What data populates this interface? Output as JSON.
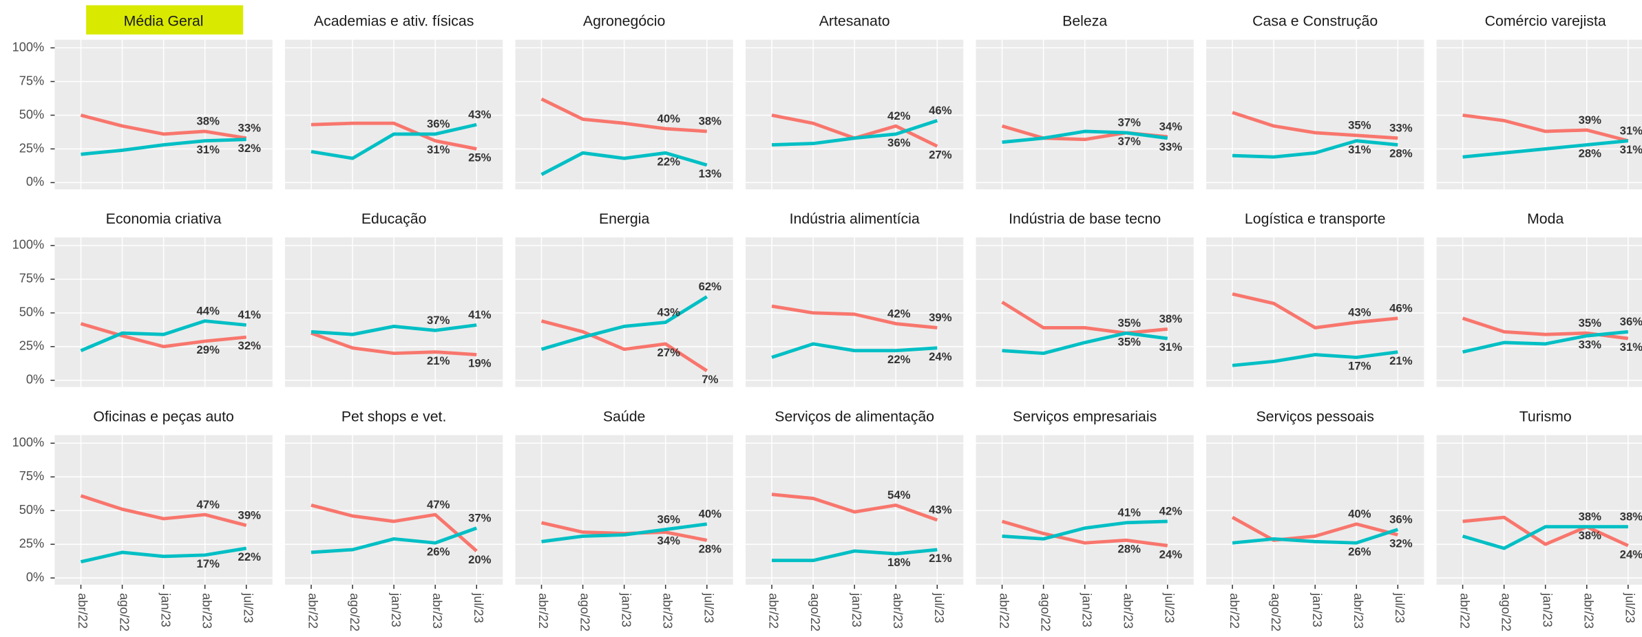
{
  "chart_data": {
    "type": "line",
    "categories": [
      "abr/22",
      "ago/22",
      "jan/23",
      "abr/23",
      "jul/23"
    ],
    "ylim": [
      -5,
      106
    ],
    "yticks": [
      {
        "value": 0,
        "label": "0%"
      },
      {
        "value": 25,
        "label": "25%"
      },
      {
        "value": 50,
        "label": "50%"
      },
      {
        "value": 75,
        "label": "75%"
      },
      {
        "value": 100,
        "label": "100%"
      }
    ],
    "grid": true,
    "panels": [
      {
        "title": "Média Geral",
        "series": [
          {
            "color": "#f8766d",
            "values": [
              50,
              42,
              36,
              38,
              33
            ],
            "value_labels": [
              null,
              null,
              null,
              "38%",
              "33%"
            ]
          },
          {
            "color": "#00bfc4",
            "values": [
              21,
              24,
              28,
              31,
              32
            ],
            "value_labels": [
              null,
              null,
              null,
              "31%",
              "32%"
            ]
          }
        ]
      },
      {
        "title": "Academias e ativ. físicas",
        "series": [
          {
            "color": "#f8766d",
            "values": [
              43,
              44,
              44,
              31,
              25
            ],
            "value_labels": [
              null,
              null,
              null,
              "31%",
              "25%"
            ]
          },
          {
            "color": "#00bfc4",
            "values": [
              23,
              18,
              36,
              36,
              43
            ],
            "value_labels": [
              null,
              null,
              null,
              "36%",
              "43%"
            ]
          }
        ]
      },
      {
        "title": "Agronegócio",
        "series": [
          {
            "color": "#f8766d",
            "values": [
              62,
              47,
              44,
              40,
              38
            ],
            "value_labels": [
              null,
              null,
              null,
              "40%",
              "38%"
            ]
          },
          {
            "color": "#00bfc4",
            "values": [
              6,
              22,
              18,
              22,
              13
            ],
            "value_labels": [
              null,
              null,
              null,
              "22%",
              "13%"
            ]
          }
        ]
      },
      {
        "title": "Artesanato",
        "series": [
          {
            "color": "#f8766d",
            "values": [
              50,
              44,
              33,
              42,
              27
            ],
            "value_labels": [
              null,
              null,
              null,
              "42%",
              "27%"
            ]
          },
          {
            "color": "#00bfc4",
            "values": [
              28,
              29,
              33,
              36,
              46
            ],
            "value_labels": [
              null,
              null,
              null,
              "36%",
              "46%"
            ]
          }
        ]
      },
      {
        "title": "Beleza",
        "series": [
          {
            "color": "#f8766d",
            "values": [
              42,
              33,
              32,
              37,
              34
            ],
            "value_labels": [
              null,
              null,
              null,
              "37%",
              "34%"
            ]
          },
          {
            "color": "#00bfc4",
            "values": [
              30,
              33,
              38,
              37,
              33
            ],
            "value_labels": [
              null,
              null,
              null,
              "37%",
              "33%"
            ]
          }
        ]
      },
      {
        "title": "Casa e Construção",
        "series": [
          {
            "color": "#f8766d",
            "values": [
              52,
              42,
              37,
              35,
              33
            ],
            "value_labels": [
              null,
              null,
              null,
              "35%",
              "33%"
            ]
          },
          {
            "color": "#00bfc4",
            "values": [
              20,
              19,
              22,
              31,
              28
            ],
            "value_labels": [
              null,
              null,
              null,
              "31%",
              "28%"
            ]
          }
        ]
      },
      {
        "title": "Comércio varejista",
        "series": [
          {
            "color": "#f8766d",
            "values": [
              50,
              46,
              38,
              39,
              31
            ],
            "value_labels": [
              null,
              null,
              null,
              "39%",
              "31%"
            ]
          },
          {
            "color": "#00bfc4",
            "values": [
              19,
              22,
              25,
              28,
              31
            ],
            "value_labels": [
              null,
              null,
              null,
              "28%",
              "31%"
            ]
          }
        ]
      },
      {
        "title": "Economia criativa",
        "series": [
          {
            "color": "#f8766d",
            "values": [
              42,
              33,
              25,
              29,
              32
            ],
            "value_labels": [
              null,
              null,
              null,
              "29%",
              "32%"
            ]
          },
          {
            "color": "#00bfc4",
            "values": [
              22,
              35,
              34,
              44,
              41
            ],
            "value_labels": [
              null,
              null,
              null,
              "44%",
              "41%"
            ]
          }
        ]
      },
      {
        "title": "Educação",
        "series": [
          {
            "color": "#f8766d",
            "values": [
              35,
              24,
              20,
              21,
              19
            ],
            "value_labels": [
              null,
              null,
              null,
              "21%",
              "19%"
            ]
          },
          {
            "color": "#00bfc4",
            "values": [
              36,
              34,
              40,
              37,
              41
            ],
            "value_labels": [
              null,
              null,
              null,
              "37%",
              "41%"
            ]
          }
        ]
      },
      {
        "title": "Energia",
        "series": [
          {
            "color": "#f8766d",
            "values": [
              44,
              36,
              23,
              27,
              7
            ],
            "value_labels": [
              null,
              null,
              null,
              "27%",
              "7%"
            ]
          },
          {
            "color": "#00bfc4",
            "values": [
              23,
              32,
              40,
              43,
              62
            ],
            "value_labels": [
              null,
              null,
              null,
              "43%",
              "62%"
            ]
          }
        ]
      },
      {
        "title": "Indústria alimentícia",
        "series": [
          {
            "color": "#f8766d",
            "values": [
              55,
              50,
              49,
              42,
              39
            ],
            "value_labels": [
              null,
              null,
              null,
              "42%",
              "39%"
            ]
          },
          {
            "color": "#00bfc4",
            "values": [
              17,
              27,
              22,
              22,
              24
            ],
            "value_labels": [
              null,
              null,
              null,
              "22%",
              "24%"
            ]
          }
        ]
      },
      {
        "title": "Indústria de base tecno",
        "series": [
          {
            "color": "#f8766d",
            "values": [
              58,
              39,
              39,
              35,
              38
            ],
            "value_labels": [
              null,
              null,
              null,
              "35%",
              "38%"
            ]
          },
          {
            "color": "#00bfc4",
            "values": [
              22,
              20,
              28,
              35,
              31
            ],
            "value_labels": [
              null,
              null,
              null,
              "35%",
              "31%"
            ]
          }
        ]
      },
      {
        "title": "Logística e transporte",
        "series": [
          {
            "color": "#f8766d",
            "values": [
              64,
              57,
              39,
              43,
              46
            ],
            "value_labels": [
              null,
              null,
              null,
              "43%",
              "46%"
            ]
          },
          {
            "color": "#00bfc4",
            "values": [
              11,
              14,
              19,
              17,
              21
            ],
            "value_labels": [
              null,
              null,
              null,
              "17%",
              "21%"
            ]
          }
        ]
      },
      {
        "title": "Moda",
        "series": [
          {
            "color": "#f8766d",
            "values": [
              46,
              36,
              34,
              35,
              31
            ],
            "value_labels": [
              null,
              null,
              null,
              "35%",
              "31%"
            ]
          },
          {
            "color": "#00bfc4",
            "values": [
              21,
              28,
              27,
              33,
              36
            ],
            "value_labels": [
              null,
              null,
              null,
              "33%",
              "36%"
            ]
          }
        ]
      },
      {
        "title": "Oficinas e peças auto",
        "series": [
          {
            "color": "#f8766d",
            "values": [
              61,
              51,
              44,
              47,
              39
            ],
            "value_labels": [
              null,
              null,
              null,
              "47%",
              "39%"
            ]
          },
          {
            "color": "#00bfc4",
            "values": [
              12,
              19,
              16,
              17,
              22
            ],
            "value_labels": [
              null,
              null,
              null,
              "17%",
              "22%"
            ]
          }
        ]
      },
      {
        "title": "Pet shops e vet.",
        "series": [
          {
            "color": "#f8766d",
            "values": [
              54,
              46,
              42,
              47,
              20
            ],
            "value_labels": [
              null,
              null,
              null,
              "47%",
              "20%"
            ]
          },
          {
            "color": "#00bfc4",
            "values": [
              19,
              21,
              29,
              26,
              37
            ],
            "value_labels": [
              null,
              null,
              null,
              "26%",
              "37%"
            ]
          }
        ]
      },
      {
        "title": "Saúde",
        "series": [
          {
            "color": "#f8766d",
            "values": [
              41,
              34,
              33,
              34,
              28
            ],
            "value_labels": [
              null,
              null,
              null,
              "34%",
              "28%"
            ]
          },
          {
            "color": "#00bfc4",
            "values": [
              27,
              31,
              32,
              36,
              40
            ],
            "value_labels": [
              null,
              null,
              null,
              "36%",
              "40%"
            ]
          }
        ]
      },
      {
        "title": "Serviços de alimentação",
        "series": [
          {
            "color": "#f8766d",
            "values": [
              62,
              59,
              49,
              54,
              43
            ],
            "value_labels": [
              null,
              null,
              null,
              "54%",
              "43%"
            ]
          },
          {
            "color": "#00bfc4",
            "values": [
              13,
              13,
              20,
              18,
              21
            ],
            "value_labels": [
              null,
              null,
              null,
              "18%",
              "21%"
            ]
          }
        ]
      },
      {
        "title": "Serviços empresariais",
        "series": [
          {
            "color": "#f8766d",
            "values": [
              42,
              33,
              26,
              28,
              24
            ],
            "value_labels": [
              null,
              null,
              null,
              "28%",
              "24%"
            ]
          },
          {
            "color": "#00bfc4",
            "values": [
              31,
              29,
              37,
              41,
              42
            ],
            "value_labels": [
              null,
              null,
              null,
              "41%",
              "42%"
            ]
          }
        ]
      },
      {
        "title": "Serviços pessoais",
        "series": [
          {
            "color": "#f8766d",
            "values": [
              45,
              28,
              31,
              40,
              32
            ],
            "value_labels": [
              null,
              null,
              null,
              "40%",
              "32%"
            ]
          },
          {
            "color": "#00bfc4",
            "values": [
              26,
              29,
              27,
              26,
              36
            ],
            "value_labels": [
              null,
              null,
              null,
              "26%",
              "36%"
            ]
          }
        ]
      },
      {
        "title": "Turismo",
        "series": [
          {
            "color": "#f8766d",
            "values": [
              42,
              45,
              25,
              38,
              24
            ],
            "value_labels": [
              null,
              null,
              null,
              "38%",
              "24%"
            ]
          },
          {
            "color": "#00bfc4",
            "values": [
              31,
              22,
              38,
              38,
              38
            ],
            "value_labels": [
              null,
              null,
              null,
              "38%",
              "38%"
            ]
          }
        ]
      }
    ]
  }
}
